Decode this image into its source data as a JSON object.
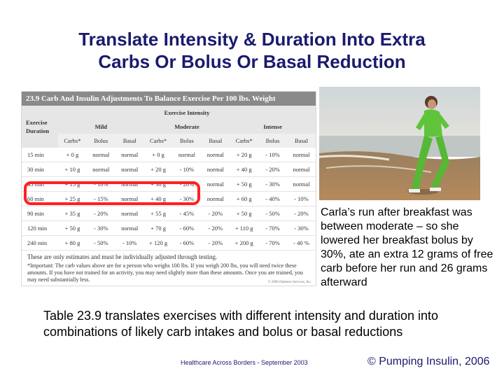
{
  "slide": {
    "title_line1": "Translate Intensity & Duration Into Extra",
    "title_line2": "Carbs Or Bolus Or Basal Reduction",
    "caption": "Carla’s run after breakfast was between moderate – so she lowered her breakfast bolus by 30%, ate an extra 12 grams of free carb before her run and 26 grams afterward",
    "bottom_text": "Table 23.9 translates exercises with different intensity and duration into combinations of likely carb intakes and bolus or basal reductions",
    "footer_mid": "Healthcare Across Borders  -  September 2003",
    "footer_right": "© Pumping Insulin, 2006",
    "highlight_color": "#ff2020",
    "title_color": "#1a1a6e"
  },
  "table": {
    "title": "23.9  Carb And Insulin Adjustments To Balance Exercise Per 100 lbs. Weight",
    "exercise_duration": "Exercise Duration",
    "exercise_intensity": "Exercise Intensity",
    "levels": [
      "Mild",
      "Moderate",
      "Intense"
    ],
    "subheads": [
      "Carbs*",
      "Bolus",
      "Basal",
      "Carbs*",
      "Bolus",
      "Basal",
      "Carbs*",
      "Bolus",
      "Basal"
    ],
    "rows": [
      {
        "duration": "15 min",
        "cells": [
          "+ 0 g",
          "normal",
          "normal",
          "+ 0 g",
          "normal",
          "normal",
          "+ 20 g",
          "- 10%",
          "normal"
        ]
      },
      {
        "duration": "30 min",
        "cells": [
          "+ 10 g",
          "normal",
          "normal",
          "+ 20 g",
          "- 10%",
          "normal",
          "+ 40 g",
          "- 20%",
          "normal"
        ]
      },
      {
        "duration": "45 min",
        "cells": [
          "+ 15 g",
          "- 10%",
          "normal",
          "+ 30 g",
          "- 20%",
          "normal",
          "+ 50 g",
          "- 30%",
          "normal"
        ]
      },
      {
        "duration": "60 min",
        "cells": [
          "+ 25 g",
          "- 15%",
          "normal",
          "+ 40 g",
          "- 30%",
          "normal",
          "+ 60 g",
          "- 40%",
          "- 10%"
        ]
      },
      {
        "duration": "90 min",
        "cells": [
          "+ 35 g",
          "- 20%",
          "normal",
          "+ 55 g",
          "- 45%",
          "- 20%",
          "+ 50 g",
          "- 50%",
          "- 20%"
        ]
      },
      {
        "duration": "120 min",
        "cells": [
          "+ 50 g",
          "- 30%",
          "normal",
          "+ 70 g",
          "- 60%",
          "- 20%",
          "+ 110 g",
          "- 70%",
          "- 30%"
        ]
      },
      {
        "duration": "240 min",
        "cells": [
          "+ 80 g",
          "- 50%",
          "- 10%",
          "+ 120 g",
          "- 60%",
          "- 20%",
          "+ 200 g",
          "- 70%",
          "- 40 %"
        ]
      }
    ],
    "note1": "These are only estimates and must be individually adjusted through testing.",
    "note2": "*Important: The carb values above are for a person who weighs 100 lbs. If you weigh 200 lbs, you will need twice these amounts. If you have not trained for an activity, you may need slightly more than these amounts. Once you are trained, you may need substantially less.",
    "copyright": "© 2006 Diabetes Services, Inc."
  }
}
